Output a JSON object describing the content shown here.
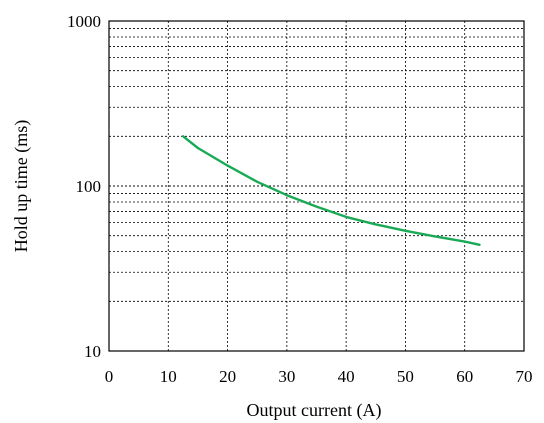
{
  "chart_data": {
    "type": "line",
    "title": "",
    "xlabel": "Output current (A)",
    "ylabel": "Hold up time (ms)",
    "xlim": [
      0,
      70
    ],
    "ylim": [
      10,
      1000
    ],
    "y_scale": "log",
    "x_ticks": [
      "0",
      "10",
      "20",
      "30",
      "40",
      "50",
      "60",
      "70"
    ],
    "y_ticks": [
      "10",
      "100",
      "1000"
    ],
    "grid": true,
    "legend": "none",
    "colors": {
      "series": "#1aaa55",
      "grid": "#000000",
      "frame": "#000000"
    },
    "series": [
      {
        "x": [
          12.5,
          15,
          20,
          25,
          30,
          35,
          40,
          45,
          50,
          55,
          60,
          62.5
        ],
        "y": [
          200,
          170,
          133,
          106,
          88,
          75,
          65,
          58.5,
          53.5,
          49.5,
          46,
          44
        ]
      }
    ]
  }
}
